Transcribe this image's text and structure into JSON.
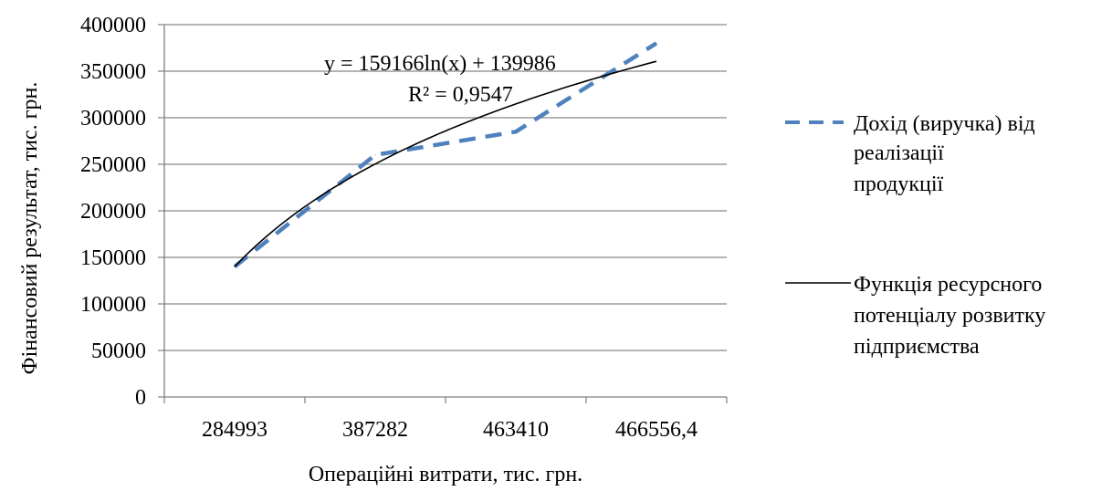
{
  "chart_data": {
    "type": "line",
    "title": "",
    "xlabel": "Операційні витрати, тис. грн.",
    "ylabel": "Фінансовий результат, тис. грн.",
    "categories": [
      "284993",
      "387282",
      "463410",
      "466556,4"
    ],
    "ylim": [
      0,
      400000
    ],
    "yticks": [
      0,
      50000,
      100000,
      150000,
      200000,
      250000,
      300000,
      350000,
      400000
    ],
    "grid": "horizontal",
    "legend_position": "right",
    "series": [
      {
        "name": "Дохід (виручка)  від реалізації продукції",
        "values": [
          140000,
          260000,
          285000,
          380000
        ],
        "style": "dashed",
        "color": "#4f81bd"
      },
      {
        "name": "Функція ресурсного потенціалу розвитку підприємства",
        "type": "trendline",
        "trend": "logarithmic",
        "coef_a": 159166,
        "coef_b": 139986,
        "style": "solid",
        "color": "#000000"
      }
    ],
    "annotations": {
      "equation": "y = 159166ln(x) + 139986",
      "r_squared": "R² = 0,9547"
    }
  }
}
